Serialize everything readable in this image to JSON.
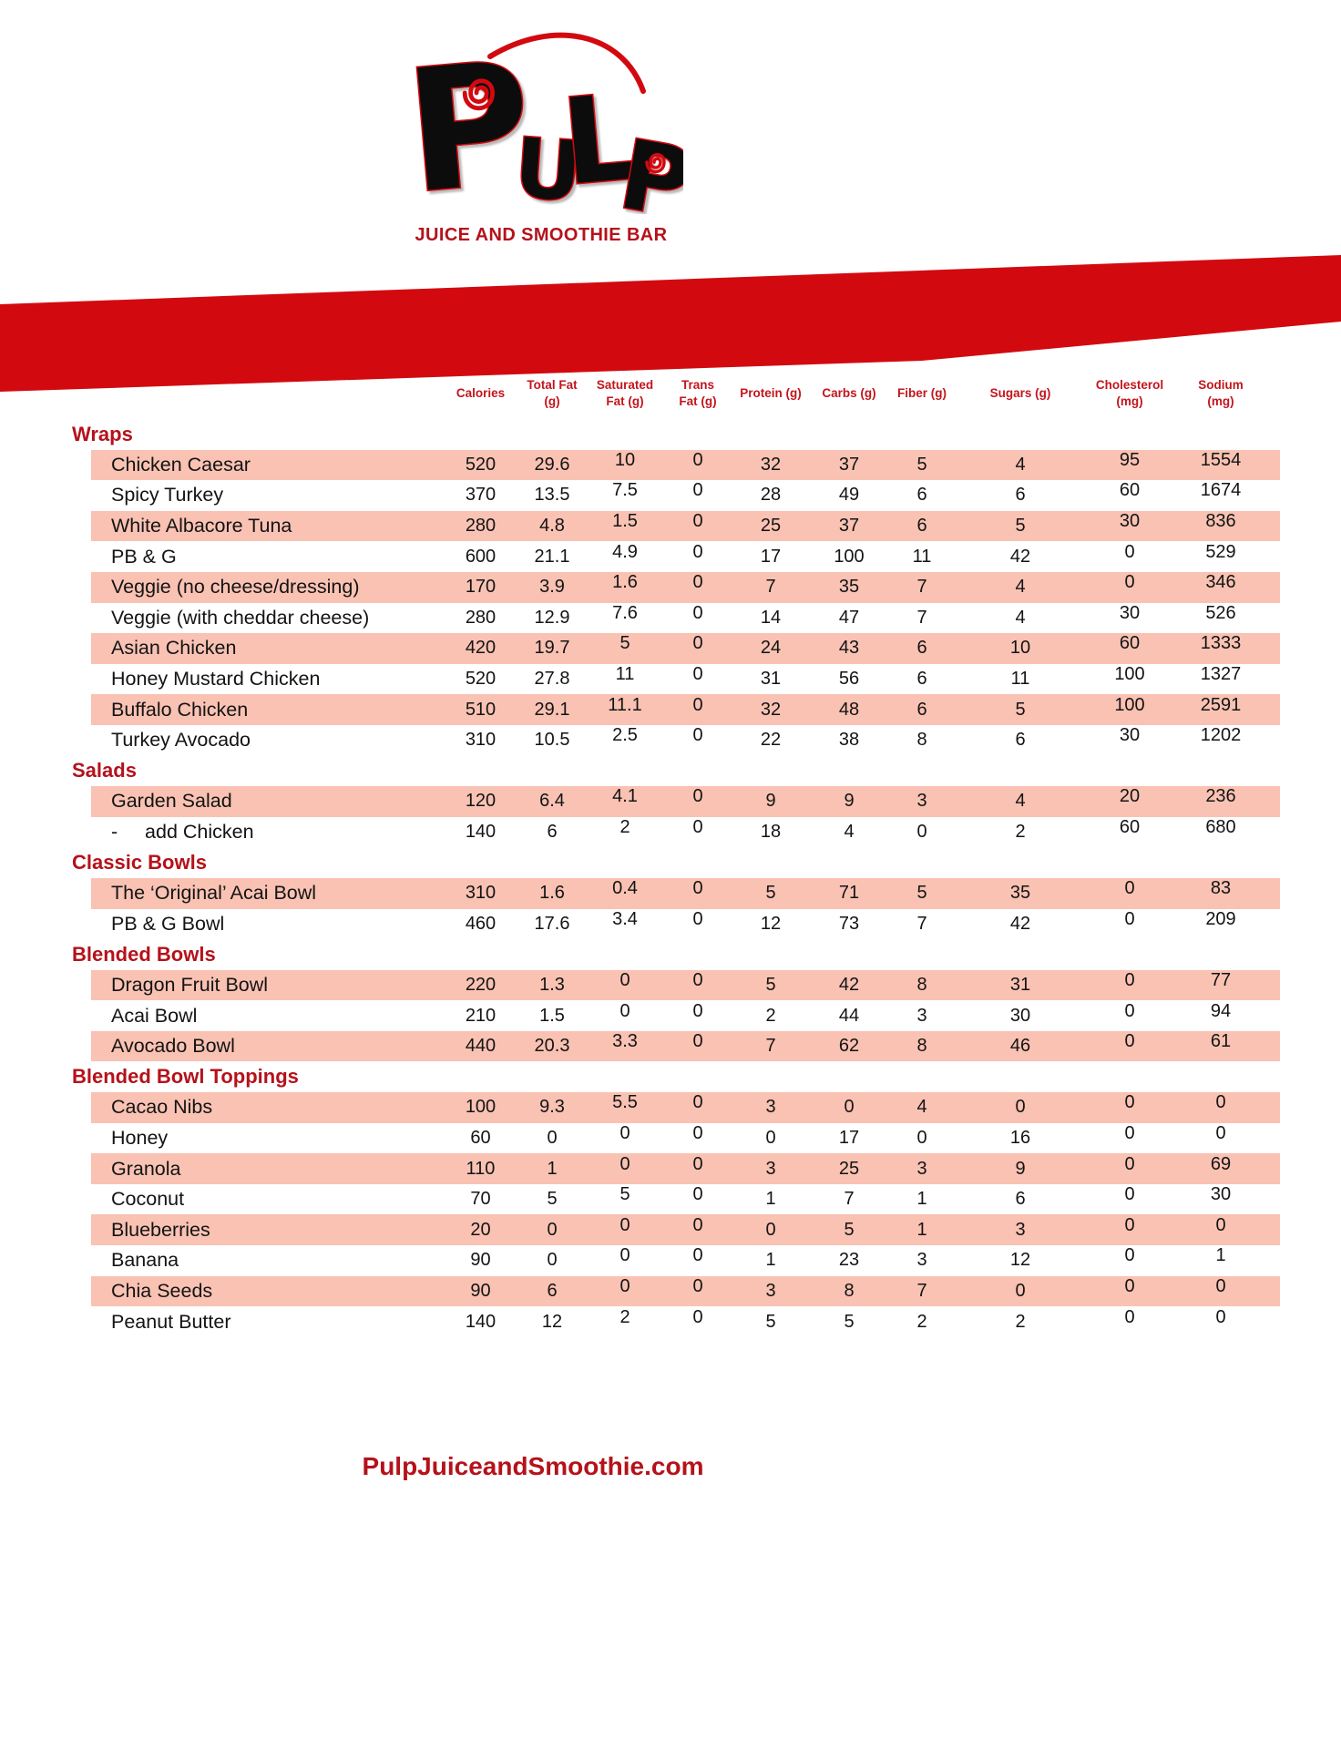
{
  "colors": {
    "band_red": "#d20a10",
    "dark_red_text": "#b5121b",
    "column_header_red": "#c3151c",
    "row_highlight_pink": "#f9c2b3"
  },
  "logo": {
    "letters": [
      "P",
      "U",
      "L",
      "P"
    ],
    "tagline": "JUICE AND SMOOTHIE BAR"
  },
  "table": {
    "columns": [
      "Calories",
      "Total Fat\n(g)",
      "Saturated\nFat (g)",
      "Trans\nFat (g)",
      "Protein (g)",
      "Carbs (g)",
      "Fiber (g)",
      "Sugars (g)",
      "Cholesterol\n(mg)",
      "Sodium\n(mg)"
    ],
    "sections": [
      {
        "title": "Wraps",
        "rows": [
          {
            "name": "Chicken Caesar",
            "values": [
              520,
              29.6,
              10,
              0,
              32,
              37,
              5,
              4,
              95,
              1554
            ]
          },
          {
            "name": "Spicy Turkey",
            "values": [
              370,
              13.5,
              7.5,
              0,
              28,
              49,
              6,
              6,
              60,
              1674
            ]
          },
          {
            "name": "White Albacore Tuna",
            "values": [
              280,
              4.8,
              1.5,
              0,
              25,
              37,
              6,
              5,
              30,
              836
            ]
          },
          {
            "name": "PB & G",
            "values": [
              600,
              21.1,
              4.9,
              0,
              17,
              100,
              11,
              42,
              0,
              529
            ]
          },
          {
            "name": "Veggie (no cheese/dressing)",
            "values": [
              170,
              3.9,
              1.6,
              0,
              7,
              35,
              7,
              4,
              0,
              346
            ]
          },
          {
            "name": "Veggie (with cheddar cheese)",
            "values": [
              280,
              12.9,
              7.6,
              0,
              14,
              47,
              7,
              4,
              30,
              526
            ]
          },
          {
            "name": "Asian Chicken",
            "values": [
              420,
              19.7,
              5,
              0,
              24,
              43,
              6,
              10,
              60,
              1333
            ]
          },
          {
            "name": "Honey Mustard Chicken",
            "values": [
              520,
              27.8,
              11,
              0,
              31,
              56,
              6,
              11,
              100,
              1327
            ]
          },
          {
            "name": "Buffalo Chicken",
            "values": [
              510,
              29.1,
              11.1,
              0,
              32,
              48,
              6,
              5,
              100,
              2591
            ]
          },
          {
            "name": "Turkey Avocado",
            "values": [
              310,
              10.5,
              2.5,
              0,
              22,
              38,
              8,
              6,
              30,
              1202
            ]
          }
        ]
      },
      {
        "title": "Salads",
        "rows": [
          {
            "name": "Garden Salad",
            "values": [
              120,
              6.4,
              4.1,
              0,
              9,
              9,
              3,
              4,
              20,
              236
            ]
          },
          {
            "name": "-     add Chicken",
            "values": [
              140,
              6,
              2,
              0,
              18,
              4,
              0,
              2,
              60,
              680
            ]
          }
        ]
      },
      {
        "title": "Classic Bowls",
        "rows": [
          {
            "name": "The ‘Original’ Acai Bowl",
            "values": [
              310,
              1.6,
              0.4,
              0,
              5,
              71,
              5,
              35,
              0,
              83
            ]
          },
          {
            "name": "PB & G Bowl",
            "values": [
              460,
              17.6,
              3.4,
              0,
              12,
              73,
              7,
              42,
              0,
              209
            ]
          }
        ]
      },
      {
        "title": "Blended Bowls",
        "rows": [
          {
            "name": "Dragon Fruit Bowl",
            "values": [
              220,
              1.3,
              0,
              0,
              5,
              42,
              8,
              31,
              0,
              77
            ]
          },
          {
            "name": "Acai Bowl",
            "values": [
              210,
              1.5,
              0,
              0,
              2,
              44,
              3,
              30,
              0,
              94
            ]
          },
          {
            "name": "Avocado Bowl",
            "values": [
              440,
              20.3,
              3.3,
              0,
              7,
              62,
              8,
              46,
              0,
              61
            ]
          }
        ]
      },
      {
        "title": "Blended Bowl Toppings",
        "rows": [
          {
            "name": "Cacao Nibs",
            "values": [
              100,
              9.3,
              5.5,
              0,
              3,
              0,
              4,
              0,
              0,
              0
            ]
          },
          {
            "name": "Honey",
            "values": [
              60,
              0,
              0,
              0,
              0,
              17,
              0,
              16,
              0,
              0
            ]
          },
          {
            "name": "Granola",
            "values": [
              110,
              1,
              0,
              0,
              3,
              25,
              3,
              9,
              0,
              69
            ]
          },
          {
            "name": "Coconut",
            "values": [
              70,
              5,
              5,
              0,
              1,
              7,
              1,
              6,
              0,
              30
            ]
          },
          {
            "name": "Blueberries",
            "values": [
              20,
              0,
              0,
              0,
              0,
              5,
              1,
              3,
              0,
              0
            ]
          },
          {
            "name": "Banana",
            "values": [
              90,
              0,
              0,
              0,
              1,
              23,
              3,
              12,
              0,
              1
            ]
          },
          {
            "name": "Chia Seeds",
            "values": [
              90,
              6,
              0,
              0,
              3,
              8,
              7,
              0,
              0,
              0
            ]
          },
          {
            "name": "Peanut Butter",
            "values": [
              140,
              12,
              2,
              0,
              5,
              5,
              2,
              2,
              0,
              0
            ]
          }
        ]
      }
    ]
  },
  "footer": {
    "website": "PulpJuiceandSmoothie.com"
  }
}
